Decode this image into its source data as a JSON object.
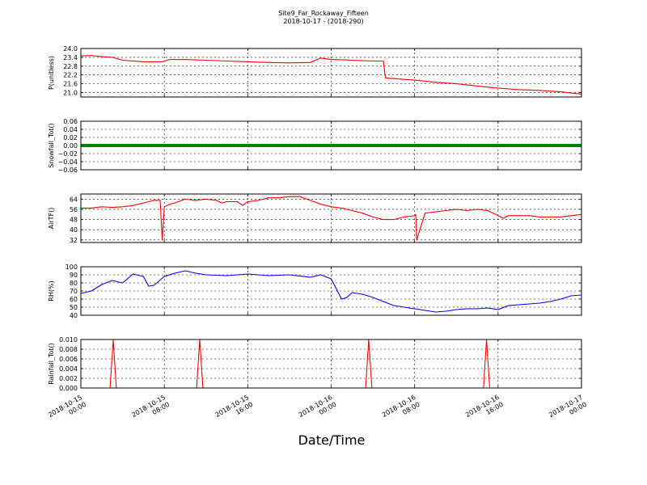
{
  "figure": {
    "title_line1": "Site9_Far_Rockaway_Fifteen",
    "title_line2": "2018-10-17 - (2018-290)",
    "xlabel": "Date/Time",
    "x_tick_labels": [
      [
        "2018-10-15",
        "00:00"
      ],
      [
        "2018-10-15",
        "08:00"
      ],
      [
        "2018-10-15",
        "16:00"
      ],
      [
        "2018-10-16",
        "00:00"
      ],
      [
        "2018-10-16",
        "08:00"
      ],
      [
        "2018-10-16",
        "16:00"
      ],
      [
        "2018-10-17",
        "00:00"
      ]
    ]
  },
  "chart_data": [
    {
      "type": "line",
      "ylabel": "P(unitless)",
      "color": "#ff0000",
      "xlim_hours": [
        0,
        48
      ],
      "ylim": [
        20.7,
        24.0
      ],
      "yticks": [
        "24.0",
        "23.4",
        "22.8",
        "22.2",
        "21.6",
        "21.0"
      ],
      "ytick_values": [
        24.0,
        23.4,
        22.8,
        22.2,
        21.6,
        21.0
      ],
      "grid": true,
      "x_hours": [
        0,
        1,
        2,
        3,
        4,
        6,
        7.8,
        8.5,
        10,
        12,
        14,
        16,
        18,
        20,
        22,
        23,
        24,
        26,
        28,
        29,
        29.2,
        32,
        34,
        36,
        38,
        40,
        42,
        44,
        46,
        48
      ],
      "values": [
        23.5,
        23.52,
        23.45,
        23.4,
        23.2,
        23.1,
        23.1,
        23.25,
        23.25,
        23.2,
        23.15,
        23.1,
        23.05,
        23.02,
        23.05,
        23.35,
        23.25,
        23.2,
        23.15,
        23.15,
        22.0,
        21.85,
        21.7,
        21.6,
        21.45,
        21.3,
        21.2,
        21.15,
        21.05,
        20.9
      ]
    },
    {
      "type": "line",
      "ylabel": "Snowfall_Tot()",
      "color": "#008000",
      "xlim_hours": [
        0,
        48
      ],
      "ylim": [
        -0.06,
        0.06
      ],
      "yticks": [
        "0.06",
        "0.04",
        "0.02",
        "0.00",
        "−0.02",
        "−0.04",
        "−0.06"
      ],
      "ytick_values": [
        0.06,
        0.04,
        0.02,
        0.0,
        -0.02,
        -0.04,
        -0.06
      ],
      "grid": true,
      "x_hours": [
        0,
        48
      ],
      "values": [
        0,
        0
      ]
    },
    {
      "type": "line",
      "ylabel": "AirTF()",
      "color": "#ff0000",
      "xlim_hours": [
        0,
        48
      ],
      "ylim": [
        30,
        68
      ],
      "yticks": [
        "64",
        "56",
        "48",
        "40",
        "32"
      ],
      "ytick_values": [
        64,
        56,
        48,
        40,
        32
      ],
      "grid": true,
      "x_hours": [
        0,
        1,
        2,
        3,
        4,
        5,
        6,
        7,
        7.6,
        7.8,
        8,
        8.5,
        9,
        10,
        11,
        12,
        13,
        13.5,
        14,
        15,
        15.5,
        16,
        17,
        18,
        19,
        20,
        21,
        22,
        23,
        24,
        25,
        26,
        27,
        28,
        29,
        30,
        31,
        32,
        32.1,
        32.2,
        33,
        34,
        35,
        36,
        37,
        38,
        39,
        40,
        40.5,
        41,
        42,
        43,
        44,
        45,
        46,
        47,
        48
      ],
      "values": [
        57,
        57,
        58,
        57.5,
        58,
        59,
        61,
        63,
        63,
        32,
        58,
        60,
        61,
        64,
        63,
        64,
        63,
        61,
        62,
        62,
        59,
        62,
        63,
        65,
        65,
        66,
        66,
        63,
        60,
        58,
        57,
        55,
        53,
        50,
        48,
        48,
        50,
        51,
        52,
        32,
        53,
        54,
        55,
        56,
        55,
        56,
        55,
        51,
        49,
        51,
        51,
        51,
        50,
        50,
        50,
        51,
        52
      ]
    },
    {
      "type": "line",
      "ylabel": "RH(%)",
      "color": "#0000ff",
      "xlim_hours": [
        0,
        48
      ],
      "ylim": [
        40,
        100
      ],
      "yticks": [
        "100",
        "90",
        "80",
        "70",
        "60",
        "50",
        "40"
      ],
      "ytick_values": [
        100,
        90,
        80,
        70,
        60,
        50,
        40
      ],
      "grid": true,
      "x_hours": [
        0,
        1,
        2,
        3,
        4,
        5,
        6,
        6.5,
        7,
        8,
        9,
        10,
        11,
        12,
        14,
        16,
        18,
        20,
        22,
        23,
        24,
        25,
        25.5,
        26,
        27,
        28,
        29,
        30,
        31,
        32,
        33,
        34,
        35,
        36,
        37,
        38,
        39,
        40,
        41,
        42,
        43,
        44,
        45,
        46,
        47,
        48
      ],
      "values": [
        67,
        70,
        78,
        83,
        80,
        91,
        88,
        76,
        77,
        88,
        92,
        95,
        92,
        90,
        89,
        91,
        89,
        90,
        87,
        90,
        85,
        60,
        62,
        68,
        66,
        62,
        57,
        52,
        50,
        48,
        46,
        44,
        45,
        47,
        48,
        48,
        49,
        47,
        52,
        53,
        54,
        55,
        57,
        60,
        64,
        65
      ]
    },
    {
      "type": "line",
      "ylabel": "Rainfall_Tot()",
      "color": "#ff0000",
      "xlim_hours": [
        0,
        48
      ],
      "ylim": [
        0,
        0.01
      ],
      "yticks": [
        "0.010",
        "0.008",
        "0.006",
        "0.004",
        "0.002",
        "0.000"
      ],
      "ytick_values": [
        0.01,
        0.008,
        0.006,
        0.004,
        0.002,
        0.0
      ],
      "grid": true,
      "x_hours": [
        0,
        2.8,
        3.1,
        3.4,
        11.1,
        11.4,
        11.7,
        27.3,
        27.6,
        27.9,
        38.6,
        38.9,
        39.2,
        48
      ],
      "values": [
        0,
        0,
        0.01,
        0,
        0,
        0.01,
        0,
        0,
        0.01,
        0,
        0,
        0.01,
        0,
        0
      ]
    }
  ]
}
